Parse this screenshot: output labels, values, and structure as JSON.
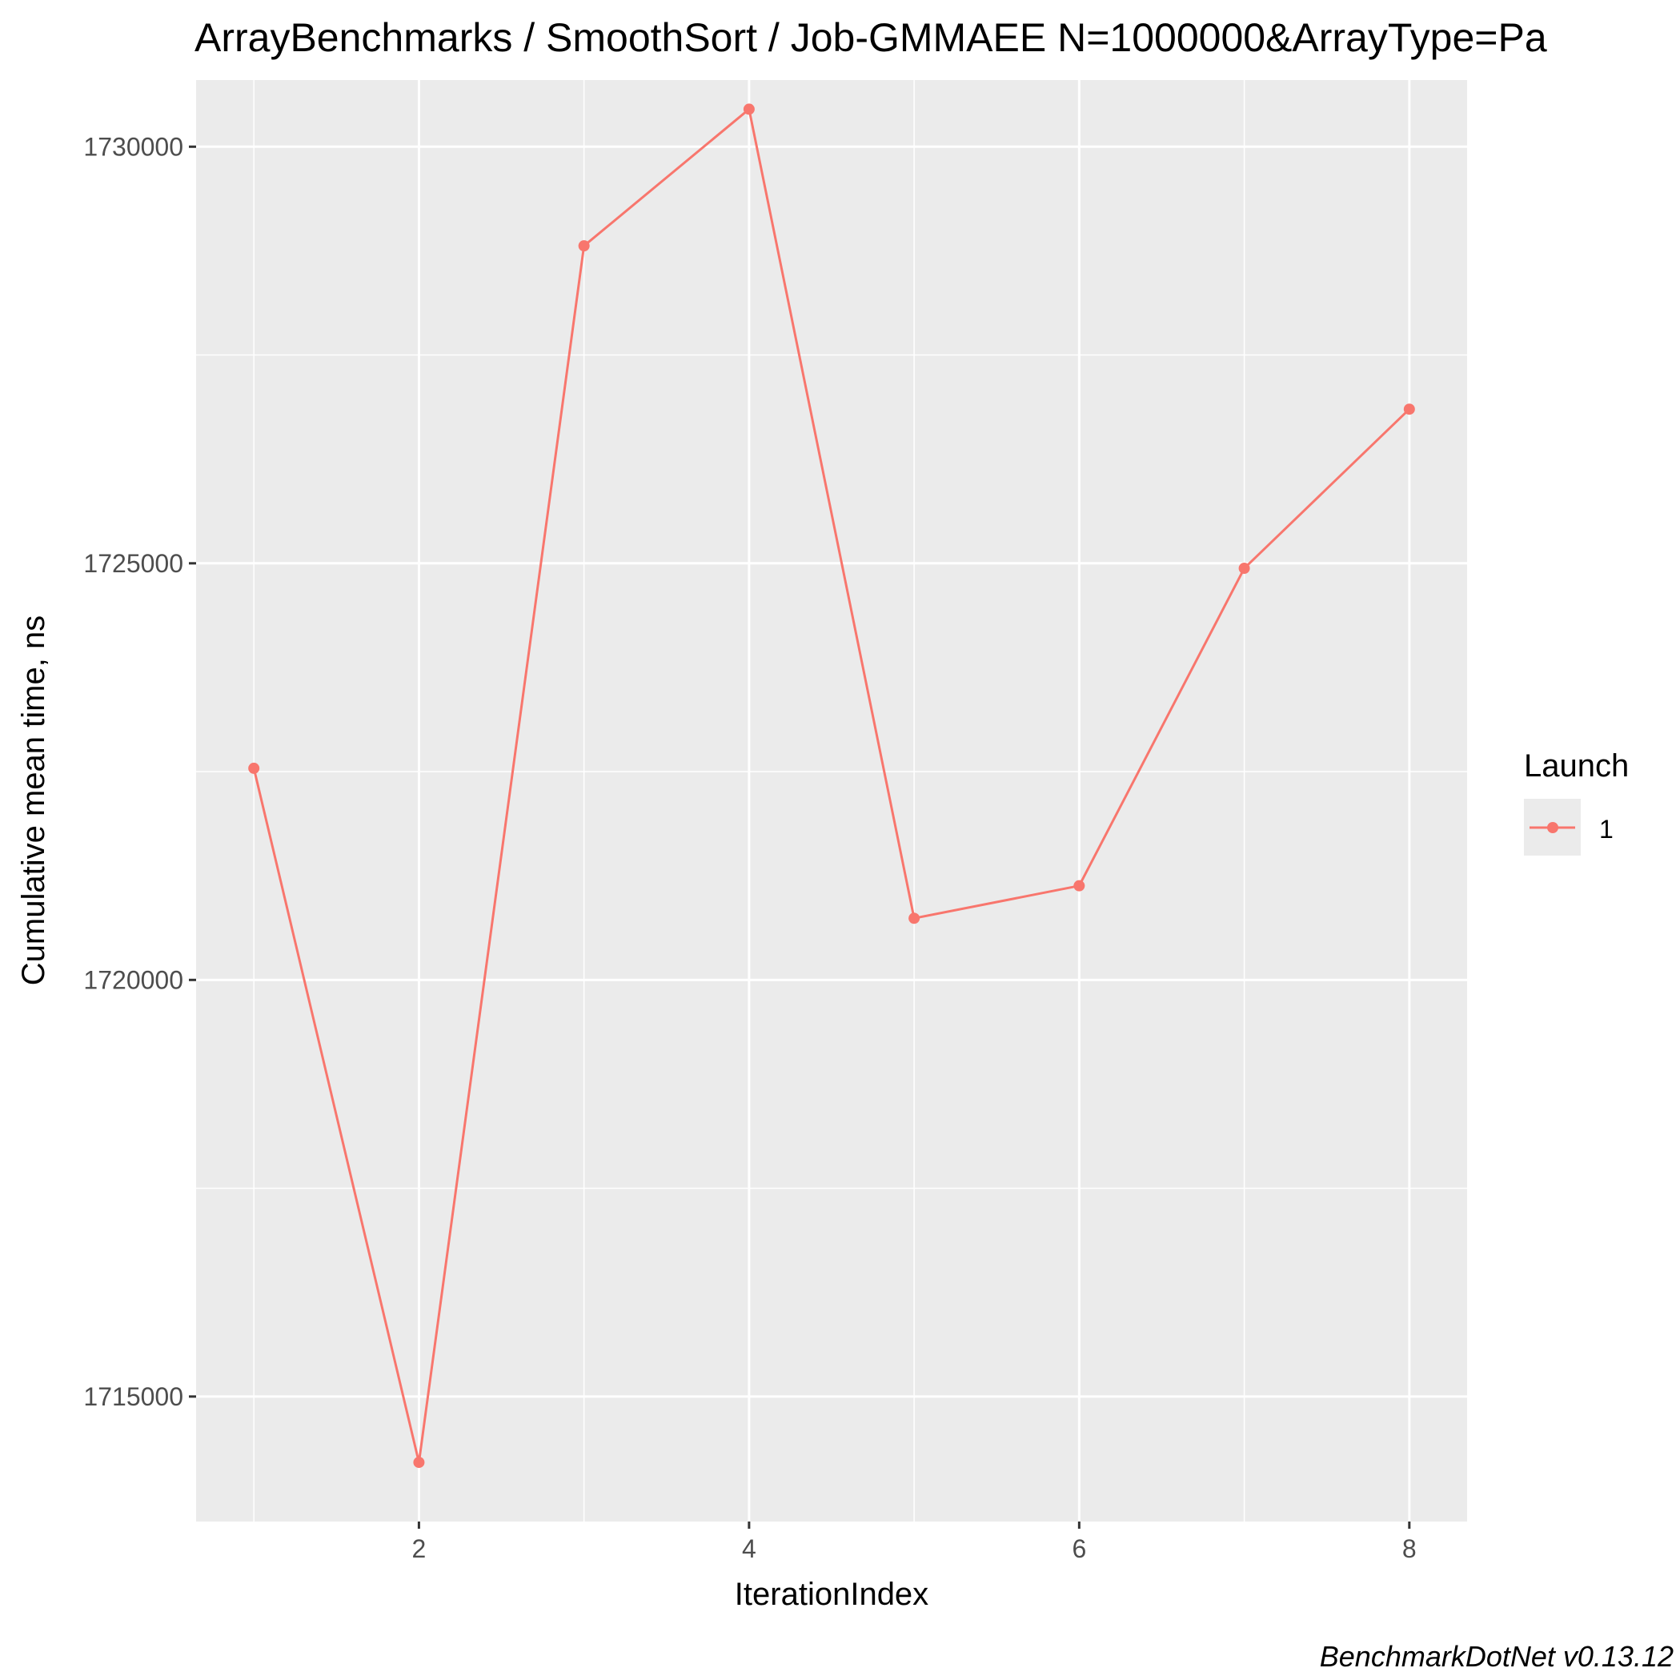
{
  "chart_data": {
    "type": "line",
    "title": "ArrayBenchmarks / SmoothSort / Job-GMMAEE N=1000000&ArrayType=Pa",
    "xlabel": "IterationIndex",
    "ylabel": "Cumulative mean time, ns",
    "xlim": [
      0.65,
      8.35
    ],
    "ylim": [
      1713500,
      1730800
    ],
    "x_ticks": [
      2,
      4,
      6,
      8
    ],
    "y_ticks": [
      1715000,
      1720000,
      1725000,
      1730000
    ],
    "x_minor_ticks": [
      1,
      3,
      5,
      7
    ],
    "y_minor_ticks": [
      1717500,
      1722500,
      1727500
    ],
    "grid": true,
    "legend": {
      "title": "Launch",
      "position": "right"
    },
    "series": [
      {
        "name": "1",
        "color": "#F8766D",
        "x": [
          1,
          2,
          3,
          4,
          5,
          6,
          7,
          8
        ],
        "values": [
          1722540,
          1714210,
          1728810,
          1730450,
          1720740,
          1721130,
          1724940,
          1726850
        ]
      }
    ],
    "caption": "BenchmarkDotNet v0.13.12"
  }
}
